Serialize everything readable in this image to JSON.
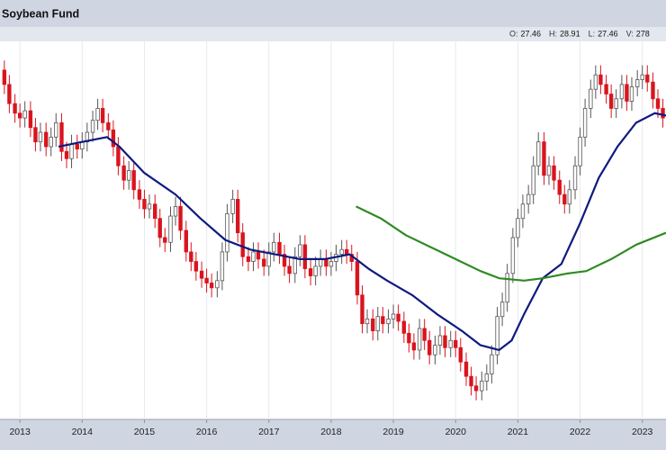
{
  "chart_data": {
    "type": "candlestick",
    "title": "Soybean Fund",
    "header": [
      {
        "label": "O:",
        "value": 27.46
      },
      {
        "label": "H:",
        "value": 28.91
      },
      {
        "label": "L:",
        "value": 27.46
      },
      {
        "label": "V:",
        "value": 278
      }
    ],
    "x": [
      2012.75,
      2012.83,
      2012.92,
      2013.0,
      2013.08,
      2013.17,
      2013.25,
      2013.33,
      2013.42,
      2013.5,
      2013.58,
      2013.67,
      2013.75,
      2013.83,
      2013.92,
      2014.0,
      2014.08,
      2014.17,
      2014.25,
      2014.33,
      2014.42,
      2014.5,
      2014.58,
      2014.67,
      2014.75,
      2014.83,
      2014.92,
      2015.0,
      2015.08,
      2015.17,
      2015.25,
      2015.33,
      2015.42,
      2015.5,
      2015.58,
      2015.67,
      2015.75,
      2015.83,
      2015.92,
      2016.0,
      2016.08,
      2016.17,
      2016.25,
      2016.33,
      2016.42,
      2016.5,
      2016.58,
      2016.67,
      2016.75,
      2016.83,
      2016.92,
      2017.0,
      2017.08,
      2017.17,
      2017.25,
      2017.33,
      2017.42,
      2017.5,
      2017.58,
      2017.67,
      2017.75,
      2017.83,
      2017.92,
      2018.0,
      2018.08,
      2018.17,
      2018.25,
      2018.33,
      2018.42,
      2018.5,
      2018.58,
      2018.67,
      2018.75,
      2018.83,
      2018.92,
      2019.0,
      2019.08,
      2019.17,
      2019.25,
      2019.33,
      2019.42,
      2019.5,
      2019.58,
      2019.67,
      2019.75,
      2019.83,
      2019.92,
      2020.0,
      2020.08,
      2020.17,
      2020.25,
      2020.33,
      2020.42,
      2020.5,
      2020.58,
      2020.67,
      2020.75,
      2020.83,
      2020.92,
      2021.0,
      2021.08,
      2021.17,
      2021.25,
      2021.33,
      2021.42,
      2021.5,
      2021.58,
      2021.67,
      2021.75,
      2021.83,
      2021.92,
      2022.0,
      2022.08,
      2022.17,
      2022.25,
      2022.33,
      2022.42,
      2022.5,
      2022.58,
      2022.67,
      2022.75,
      2022.83,
      2022.92,
      2023.0,
      2023.08,
      2023.17,
      2023.25,
      2023.33
    ],
    "open": [
      28.6,
      28.0,
      27.2,
      26.8,
      26.6,
      26.9,
      26.2,
      25.6,
      26.0,
      25.4,
      25.8,
      26.4,
      25.2,
      24.9,
      25.5,
      25.3,
      25.6,
      26.0,
      26.5,
      27.0,
      26.4,
      26.1,
      25.4,
      24.6,
      24.0,
      24.4,
      23.6,
      23.2,
      22.8,
      23.0,
      22.4,
      21.6,
      21.4,
      22.5,
      22.9,
      21.9,
      21.0,
      20.6,
      20.2,
      19.9,
      19.7,
      19.5,
      19.8,
      21.0,
      22.6,
      23.2,
      21.8,
      20.8,
      20.6,
      21.0,
      20.7,
      20.4,
      21.0,
      21.4,
      20.9,
      20.4,
      20.1,
      20.8,
      21.3,
      20.3,
      20.0,
      20.4,
      20.7,
      20.4,
      20.6,
      20.9,
      21.1,
      20.9,
      20.6,
      19.2,
      18.0,
      18.2,
      17.7,
      18.3,
      18.0,
      18.2,
      18.4,
      18.1,
      17.6,
      17.2,
      16.9,
      17.8,
      17.3,
      16.7,
      17.1,
      17.5,
      17.0,
      17.3,
      17.0,
      16.4,
      15.8,
      15.4,
      15.2,
      15.6,
      15.9,
      16.7,
      18.3,
      18.9,
      20.1,
      21.6,
      22.4,
      23.0,
      23.4,
      24.6,
      25.6,
      24.2,
      24.6,
      24.0,
      23.4,
      23.0,
      23.6,
      24.6,
      25.8,
      27.0,
      27.8,
      28.4,
      28.0,
      27.6,
      27.0,
      27.4,
      28.0,
      27.3,
      27.9,
      28.2,
      28.4,
      28.1,
      27.4,
      27.0
    ],
    "high": [
      29.0,
      28.4,
      27.6,
      27.2,
      27.3,
      27.3,
      26.6,
      26.4,
      26.4,
      26.2,
      26.8,
      26.8,
      25.6,
      25.9,
      25.9,
      26.0,
      26.4,
      26.9,
      27.4,
      27.4,
      26.8,
      26.5,
      25.8,
      25.0,
      24.8,
      24.8,
      24.0,
      23.6,
      23.4,
      23.4,
      22.8,
      22.0,
      22.9,
      23.3,
      23.3,
      22.3,
      21.4,
      21.0,
      20.6,
      20.3,
      20.1,
      20.2,
      21.4,
      23.0,
      23.6,
      23.6,
      22.2,
      21.2,
      21.4,
      21.4,
      21.1,
      21.4,
      21.8,
      21.8,
      21.3,
      20.8,
      21.2,
      21.7,
      21.7,
      20.7,
      20.8,
      21.1,
      21.1,
      21.0,
      21.3,
      21.5,
      21.5,
      21.3,
      21.0,
      19.6,
      18.6,
      18.6,
      18.7,
      18.7,
      18.6,
      18.8,
      18.8,
      18.5,
      18.0,
      17.6,
      18.2,
      18.2,
      17.7,
      17.5,
      17.9,
      17.9,
      17.7,
      17.7,
      17.4,
      16.8,
      16.2,
      15.8,
      16.0,
      16.3,
      17.1,
      18.7,
      19.3,
      20.5,
      22.0,
      22.8,
      23.4,
      23.8,
      25.0,
      26.0,
      26.0,
      25.0,
      25.0,
      24.4,
      23.8,
      24.0,
      25.0,
      26.2,
      27.4,
      28.2,
      28.8,
      28.8,
      28.4,
      28.0,
      27.8,
      28.4,
      28.4,
      28.3,
      28.6,
      28.8,
      28.8,
      28.5,
      27.8,
      27.4
    ],
    "low": [
      27.6,
      26.8,
      26.4,
      26.2,
      26.2,
      25.8,
      25.2,
      25.2,
      25.0,
      25.0,
      25.4,
      24.8,
      24.5,
      24.5,
      24.9,
      24.9,
      25.2,
      25.6,
      26.1,
      26.0,
      25.7,
      25.0,
      24.2,
      23.6,
      23.6,
      23.2,
      22.8,
      22.4,
      22.4,
      22.0,
      21.2,
      21.0,
      21.0,
      22.1,
      21.5,
      20.6,
      20.2,
      19.8,
      19.5,
      19.3,
      19.1,
      19.1,
      19.4,
      20.6,
      22.2,
      21.4,
      20.4,
      20.2,
      20.2,
      20.3,
      20.0,
      20.0,
      20.6,
      20.5,
      20.0,
      19.7,
      19.7,
      20.4,
      19.9,
      19.6,
      19.6,
      20.0,
      20.0,
      20.0,
      20.2,
      20.5,
      20.5,
      20.2,
      18.8,
      17.6,
      17.6,
      17.3,
      17.3,
      17.6,
      17.6,
      17.8,
      17.7,
      17.2,
      16.8,
      16.5,
      16.5,
      16.9,
      16.3,
      16.3,
      16.7,
      16.6,
      16.6,
      16.6,
      16.0,
      15.4,
      15.0,
      14.8,
      14.8,
      15.2,
      15.5,
      16.3,
      17.9,
      18.5,
      19.7,
      21.2,
      22.0,
      22.6,
      23.0,
      24.2,
      23.8,
      23.8,
      23.6,
      23.0,
      22.6,
      22.6,
      23.2,
      24.2,
      25.4,
      26.6,
      27.4,
      27.6,
      27.2,
      26.6,
      26.6,
      27.0,
      26.9,
      26.9,
      27.5,
      27.8,
      27.7,
      27.0,
      26.6,
      26.2
    ],
    "close": [
      28.0,
      27.2,
      26.8,
      26.6,
      26.9,
      26.2,
      25.6,
      26.0,
      25.4,
      25.8,
      26.4,
      25.2,
      24.9,
      25.5,
      25.3,
      25.6,
      26.0,
      26.5,
      27.0,
      26.4,
      26.1,
      25.4,
      24.6,
      24.0,
      24.4,
      23.6,
      23.2,
      22.8,
      23.0,
      22.4,
      21.6,
      21.4,
      22.5,
      22.9,
      21.9,
      21.0,
      20.6,
      20.2,
      19.9,
      19.7,
      19.5,
      19.8,
      21.0,
      22.6,
      23.2,
      21.8,
      20.8,
      20.6,
      21.0,
      20.7,
      20.4,
      21.0,
      21.4,
      20.9,
      20.4,
      20.1,
      20.8,
      21.3,
      20.3,
      20.0,
      20.4,
      20.7,
      20.4,
      20.6,
      20.9,
      21.1,
      20.9,
      20.6,
      19.2,
      18.0,
      18.2,
      17.7,
      18.3,
      18.0,
      18.2,
      18.4,
      18.1,
      17.6,
      17.2,
      16.9,
      17.8,
      17.3,
      16.7,
      17.1,
      17.5,
      17.0,
      17.3,
      17.0,
      16.4,
      15.8,
      15.4,
      15.2,
      15.6,
      15.9,
      16.7,
      18.3,
      18.9,
      20.1,
      21.6,
      22.4,
      23.0,
      23.4,
      24.6,
      25.6,
      24.2,
      24.6,
      24.0,
      23.4,
      23.0,
      23.6,
      24.6,
      25.8,
      27.0,
      27.8,
      28.4,
      28.0,
      27.6,
      27.0,
      27.4,
      28.0,
      27.3,
      27.9,
      28.2,
      28.4,
      28.1,
      27.4,
      27.0,
      26.6
    ],
    "up_color": "#ffffff",
    "down_color": "#d9141e",
    "lines": [
      {
        "color": "#0d1a80",
        "x": [
          2013.62,
          2014.0,
          2014.4,
          2014.6,
          2015.0,
          2015.5,
          2015.9,
          2016.3,
          2016.7,
          2017.1,
          2017.5,
          2017.9,
          2018.3,
          2018.6,
          2018.9,
          2019.3,
          2019.7,
          2020.1,
          2020.4,
          2020.7,
          2020.9,
          2021.1,
          2021.4,
          2021.7,
          2022.0,
          2022.3,
          2022.6,
          2022.9,
          2023.2,
          2023.38
        ],
        "values": [
          25.4,
          25.6,
          25.8,
          25.4,
          24.3,
          23.4,
          22.4,
          21.5,
          21.1,
          20.9,
          20.7,
          20.7,
          20.9,
          20.3,
          19.8,
          19.2,
          18.4,
          17.7,
          17.1,
          16.9,
          17.3,
          18.4,
          19.9,
          20.5,
          22.2,
          24.1,
          25.4,
          26.4,
          26.8,
          26.7
        ]
      },
      {
        "color": "#2e8b22",
        "x": [
          2018.4,
          2018.8,
          2019.2,
          2019.6,
          2020.0,
          2020.4,
          2020.7,
          2021.1,
          2021.4,
          2021.8,
          2022.1,
          2022.5,
          2022.9,
          2023.38
        ],
        "values": [
          22.9,
          22.4,
          21.7,
          21.2,
          20.7,
          20.2,
          19.9,
          19.8,
          19.9,
          20.1,
          20.2,
          20.7,
          21.3,
          21.8
        ]
      }
    ],
    "xlim": [
      2012.68,
      2023.38
    ],
    "ylim": [
      14,
      29.8
    ],
    "xticks": [
      2013,
      2014,
      2015,
      2016,
      2017,
      2018,
      2019,
      2020,
      2021,
      2022,
      2023
    ],
    "grid": true
  }
}
